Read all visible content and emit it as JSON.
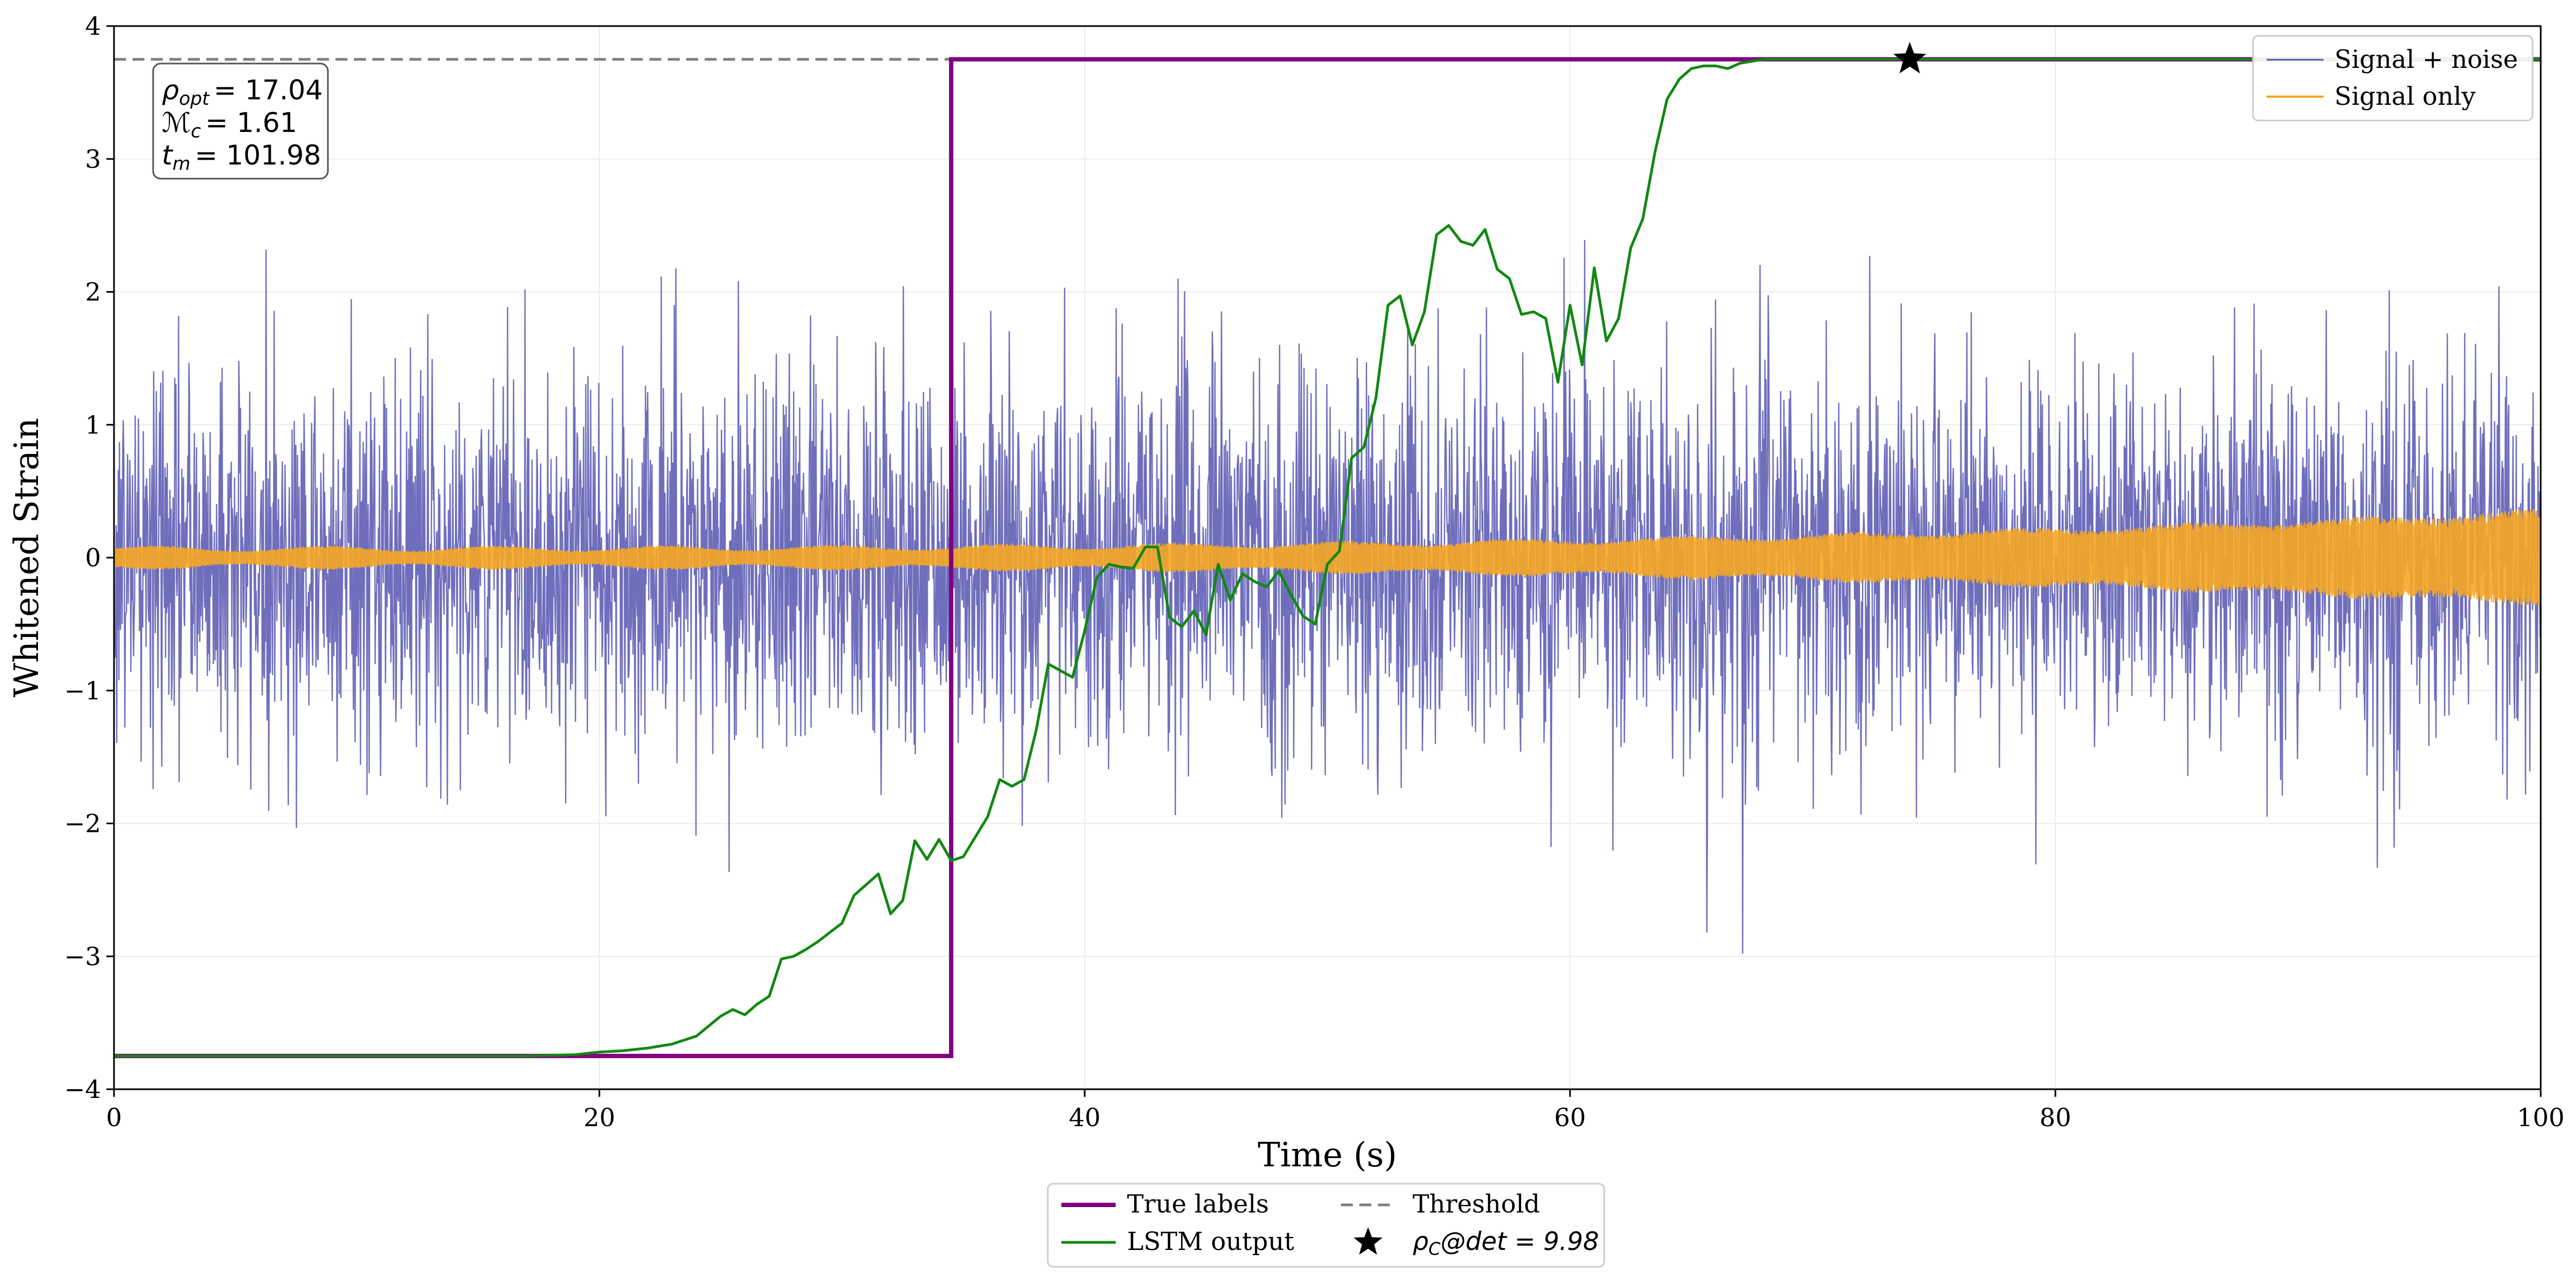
{
  "chart_data": {
    "type": "line",
    "title": "",
    "xlabel": "Time (s)",
    "ylabel": "Whitened Strain",
    "xlim": [
      0,
      100
    ],
    "ylim": [
      -4,
      4
    ],
    "grid": true,
    "x_ticks": [
      0,
      20,
      40,
      60,
      80,
      100
    ],
    "y_ticks": [
      -4,
      -3,
      -2,
      -1,
      0,
      1,
      2,
      3,
      4
    ],
    "x_tick_labels": [
      "0",
      "20",
      "40",
      "60",
      "80",
      "100"
    ],
    "y_tick_labels": [
      "−4",
      "−3",
      "−2",
      "−1",
      "0",
      "1",
      "2",
      "3",
      "4"
    ],
    "annotation": {
      "rho_opt": "ρopt = 17.04",
      "mc": "ℳc = 1.61",
      "tm": "tm = 101.98",
      "rho_opt_name": "ρ",
      "rho_opt_sub": "opt",
      "rho_opt_value": "= 17.04",
      "mc_name": "ℳ",
      "mc_sub": "c",
      "mc_value": "= 1.61",
      "tm_name": "t",
      "tm_sub": "m",
      "tm_value": "= 101.98"
    },
    "series": [
      {
        "name": "Signal + noise",
        "color": "#5555b0",
        "kind": "noisy",
        "summary": "dense white-noise trace, amplitude mostly within ±2, peaks near ±3"
      },
      {
        "name": "Signal only",
        "color": "#f5a623",
        "kind": "chirp",
        "summary": "chirp envelope: about ±0.08 at t=0, growing to about ±0.35 near t=100"
      },
      {
        "name": "True labels",
        "color": "#800080",
        "kind": "step",
        "x": [
          0,
          34.5,
          34.5,
          100
        ],
        "y": [
          -3.75,
          -3.75,
          3.75,
          3.75
        ]
      },
      {
        "name": "LSTM output",
        "color": "#118811",
        "kind": "line",
        "x": [
          0,
          10,
          17,
          19,
          20,
          21,
          22,
          23,
          24,
          25,
          25.5,
          26,
          26.5,
          27,
          27.5,
          28,
          28.5,
          29,
          29.5,
          30,
          30.5,
          31,
          31.5,
          32,
          32.5,
          33,
          33.5,
          34,
          34.5,
          35,
          35.5,
          36,
          36.5,
          37,
          37.5,
          38,
          38.5,
          39,
          39.5,
          40,
          40.5,
          41,
          41.5,
          42,
          42.5,
          43,
          43.5,
          44,
          44.5,
          45,
          45.5,
          46,
          46.5,
          47,
          47.5,
          48,
          48.5,
          49,
          49.5,
          50,
          50.5,
          51,
          51.5,
          52,
          52.5,
          53,
          53.5,
          54,
          54.5,
          55,
          55.5,
          56,
          56.5,
          57,
          57.5,
          58,
          58.5,
          59,
          59.5,
          60,
          60.5,
          61,
          61.5,
          62,
          62.5,
          63,
          63.5,
          64,
          64.5,
          65,
          65.5,
          66,
          66.5,
          67,
          68,
          70,
          100
        ],
        "y": [
          -3.75,
          -3.75,
          -3.75,
          -3.74,
          -3.72,
          -3.71,
          -3.69,
          -3.66,
          -3.6,
          -3.45,
          -3.4,
          -3.44,
          -3.36,
          -3.3,
          -3.02,
          -3.0,
          -2.95,
          -2.89,
          -2.82,
          -2.75,
          -2.54,
          -2.46,
          -2.38,
          -2.68,
          -2.58,
          -2.13,
          -2.27,
          -2.12,
          -2.28,
          -2.25,
          -2.1,
          -1.95,
          -1.67,
          -1.72,
          -1.67,
          -1.3,
          -0.8,
          -0.85,
          -0.9,
          -0.55,
          -0.15,
          -0.05,
          -0.07,
          -0.08,
          0.08,
          0.08,
          -0.45,
          -0.52,
          -0.4,
          -0.58,
          -0.05,
          -0.32,
          -0.12,
          -0.18,
          -0.22,
          -0.1,
          -0.28,
          -0.44,
          -0.5,
          -0.05,
          0.05,
          0.75,
          0.83,
          1.2,
          1.9,
          1.97,
          1.6,
          1.85,
          2.43,
          2.5,
          2.38,
          2.35,
          2.47,
          2.17,
          2.1,
          1.83,
          1.85,
          1.8,
          1.32,
          1.9,
          1.45,
          2.18,
          1.63,
          1.8,
          2.33,
          2.55,
          3.05,
          3.45,
          3.6,
          3.68,
          3.7,
          3.7,
          3.68,
          3.72,
          3.75,
          3.75,
          3.75
        ]
      },
      {
        "name": "Threshold",
        "color": "#808080",
        "kind": "hline",
        "y": 3.75
      },
      {
        "name": "ρC@det = 9.98",
        "color": "#000000",
        "kind": "marker",
        "x": 74,
        "y": 3.75
      }
    ],
    "legend_upper": {
      "placement": "top-right",
      "entries": [
        "Signal + noise",
        "Signal only"
      ]
    },
    "legend_lower": {
      "placement": "bottom-center (outside plot)",
      "entries": [
        "True labels",
        "LSTM output",
        "Threshold",
        "ρC@det = 9.98"
      ],
      "star_entry": {
        "name": "ρ",
        "sub": "C",
        "value": "@det = 9.98"
      }
    }
  }
}
